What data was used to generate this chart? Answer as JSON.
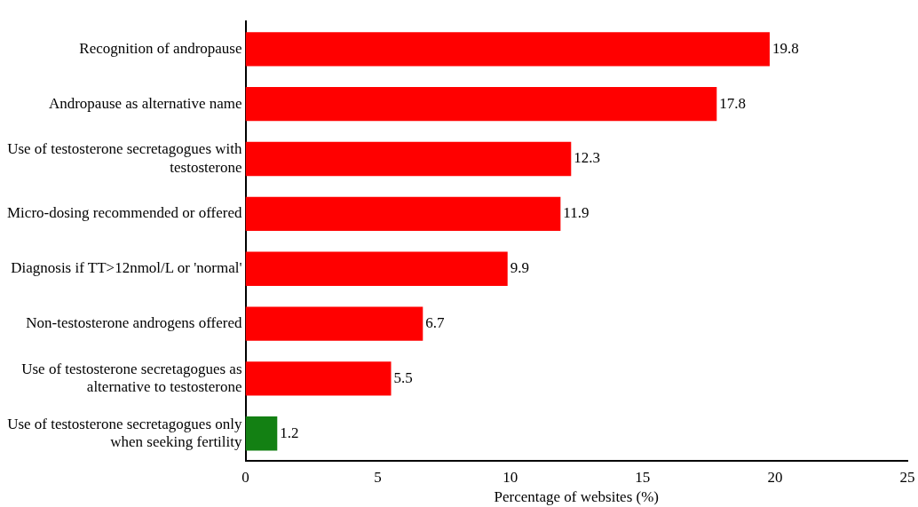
{
  "chart_data": {
    "type": "bar",
    "orientation": "horizontal",
    "xlabel": "Percentage of websites (%)",
    "categories": [
      "Recognition of andropause",
      "Andropause as alternative name",
      "Use of testosterone secretagogues with testosterone",
      "Micro-dosing recommended or offered",
      "Diagnosis if TT>12nmol/L or 'normal'",
      "Non-testosterone androgens offered",
      "Use of testosterone secretagogues as alternative to testosterone",
      "Use of testosterone secretagogues only when seeking fertility"
    ],
    "values": [
      19.8,
      17.8,
      12.3,
      11.9,
      9.9,
      6.7,
      5.5,
      1.2
    ],
    "colors": [
      "#ff0000",
      "#ff0000",
      "#ff0000",
      "#ff0000",
      "#ff0000",
      "#ff0000",
      "#ff0000",
      "#138013"
    ],
    "xlim": [
      0,
      25
    ],
    "xticks": [
      0,
      5,
      10,
      15,
      20,
      25
    ],
    "data_labels": true,
    "grid": false,
    "legend": false
  }
}
